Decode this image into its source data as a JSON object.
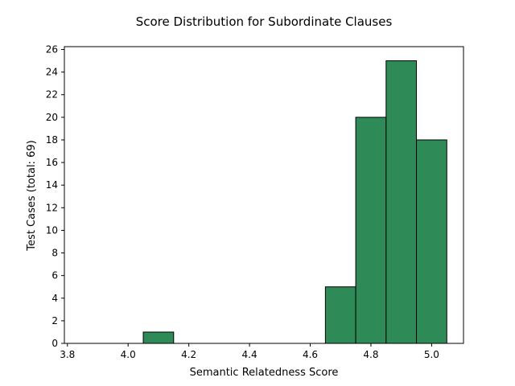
{
  "chart_data": {
    "type": "bar",
    "title": "Score Distribution for Subordinate Clauses",
    "xlabel": "Semantic Relatedness Score",
    "ylabel": "Test Cases (total: 69)",
    "xlim": [
      3.79,
      5.105
    ],
    "ylim": [
      0,
      26.25
    ],
    "bin_width": 0.1,
    "bins": [
      {
        "start": 4.05,
        "end": 4.15,
        "count": 1
      },
      {
        "start": 4.65,
        "end": 4.75,
        "count": 5
      },
      {
        "start": 4.75,
        "end": 4.85,
        "count": 20
      },
      {
        "start": 4.85,
        "end": 4.95,
        "count": 25
      },
      {
        "start": 4.95,
        "end": 5.05,
        "count": 18
      }
    ],
    "x_ticks": [
      "3.8",
      "4.0",
      "4.2",
      "4.4",
      "4.6",
      "4.8",
      "5.0"
    ],
    "y_ticks": [
      "0",
      "2",
      "4",
      "6",
      "8",
      "10",
      "12",
      "14",
      "16",
      "18",
      "20",
      "22",
      "24",
      "26"
    ],
    "grid": false,
    "bar_color": "#2e8b57",
    "edge_color": "#000000"
  }
}
